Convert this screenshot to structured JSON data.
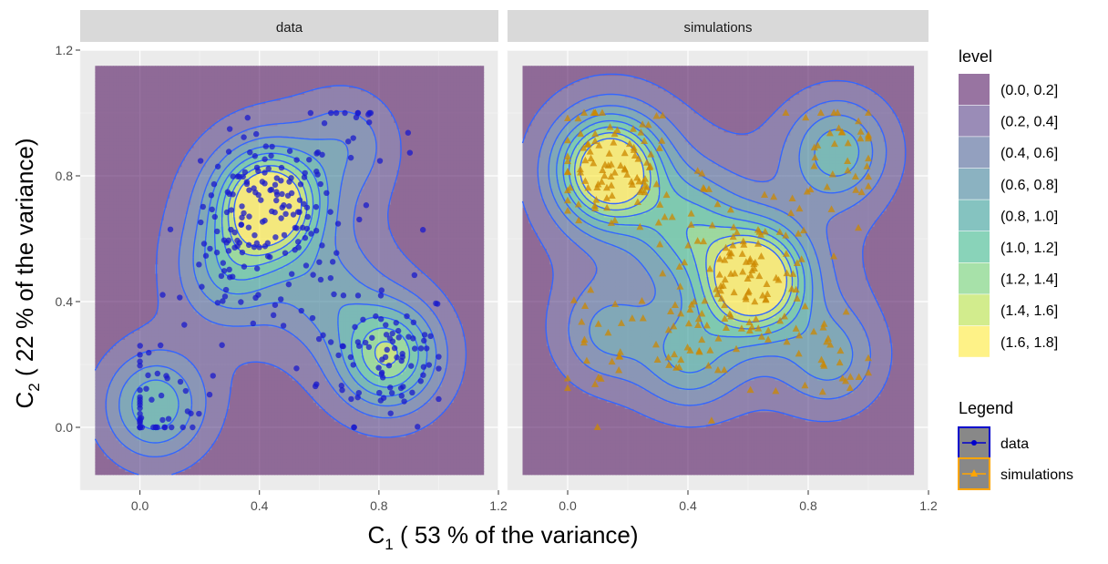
{
  "chart_data": {
    "type": "scatter",
    "panels": [
      {
        "name": "data",
        "peaks": [
          {
            "x": 0.43,
            "y": 0.71,
            "w": 1.8
          },
          {
            "x": 0.83,
            "y": 0.23,
            "w": 1.15
          },
          {
            "x": 0.3,
            "y": 0.5,
            "w": 0.55
          },
          {
            "x": 0.05,
            "y": 0.07,
            "w": 0.8
          },
          {
            "x": 0.63,
            "y": 0.42,
            "w": 0.35
          },
          {
            "x": 0.7,
            "y": 0.91,
            "w": 0.35
          }
        ]
      },
      {
        "name": "simulations",
        "peaks": [
          {
            "x": 0.14,
            "y": 0.82,
            "w": 1.8
          },
          {
            "x": 0.62,
            "y": 0.47,
            "w": 1.8
          },
          {
            "x": 0.4,
            "y": 0.64,
            "w": 0.6
          },
          {
            "x": 0.9,
            "y": 0.88,
            "w": 0.75
          },
          {
            "x": 0.4,
            "y": 0.22,
            "w": 0.55
          },
          {
            "x": 0.88,
            "y": 0.22,
            "w": 0.5
          },
          {
            "x": 0.12,
            "y": 0.3,
            "w": 0.45
          }
        ]
      }
    ],
    "xlabel": {
      "main": "C",
      "sub": "1",
      "rest": "  ( 53 % of the variance)"
    },
    "ylabel": {
      "main": "C",
      "sub": "2",
      "rest": "  ( 22 % of the variance)"
    },
    "xlim": [
      -0.2,
      1.2
    ],
    "ylim": [
      -0.2,
      1.2
    ],
    "xticks": [
      "0.0",
      "0.4",
      "0.8",
      "1.2"
    ],
    "yticks": [
      "0.0",
      "0.4",
      "0.8",
      "1.2"
    ],
    "tick_values": [
      0.0,
      0.4,
      0.8,
      1.2
    ],
    "fill_range": [
      -0.15,
      1.15
    ],
    "contour_levels": [
      0.2,
      0.4,
      0.6,
      0.8,
      1.0,
      1.2,
      1.4,
      1.6
    ],
    "grid": true,
    "legend": {
      "position": "right",
      "level_title": "level",
      "levels": [
        "(0.0, 0.2]",
        "(0.2, 0.4]",
        "(0.4, 0.6]",
        "(0.6, 0.8]",
        "(0.8, 1.0]",
        "(1.0, 1.2]",
        "(1.2, 1.4]",
        "(1.4, 1.6]",
        "(1.6, 1.8]"
      ],
      "level_colors": [
        "#440154",
        "#472d7b",
        "#3b528b",
        "#2c728e",
        "#21918c",
        "#28ae80",
        "#5ec962",
        "#addc30",
        "#fde725"
      ],
      "series_title": "Legend",
      "series": [
        {
          "name": "data",
          "color": "#0000cc",
          "marker": "circle"
        },
        {
          "name": "simulations",
          "color": "#ffa500",
          "marker": "triangle"
        }
      ]
    },
    "colors": {
      "contour_line": "#3366ff",
      "data_point": "#1a1acc",
      "sim_point": "#cc8800"
    }
  }
}
